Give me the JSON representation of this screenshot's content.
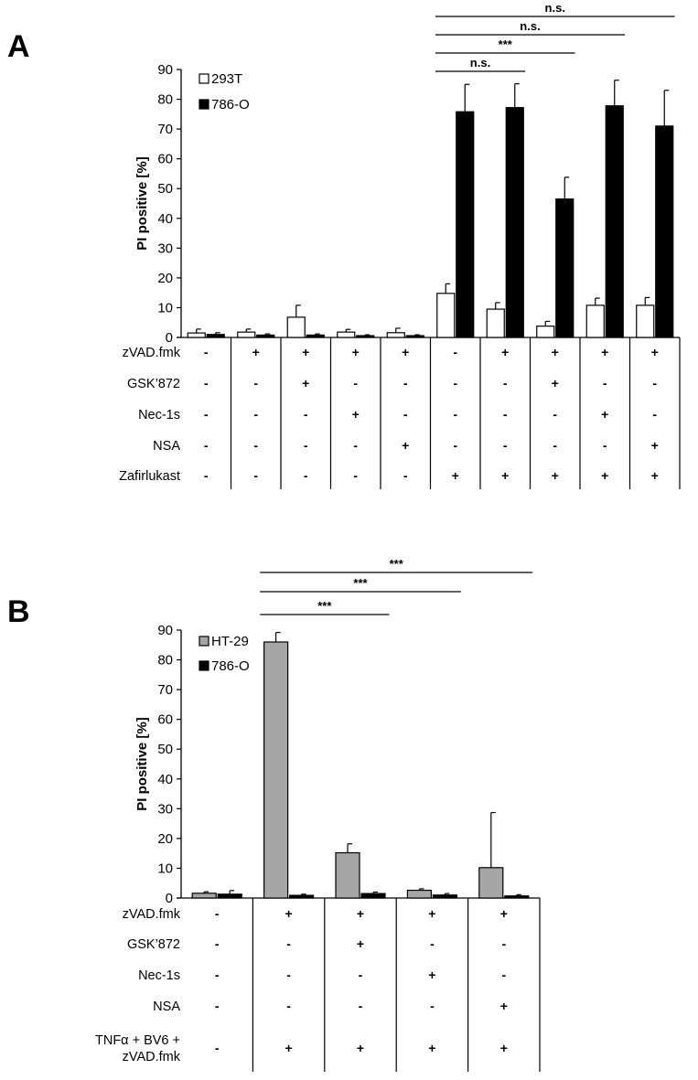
{
  "chart_data": [
    {
      "panel": "A",
      "type": "bar",
      "ylabel": "PI positive [%]",
      "ylim": [
        0,
        90
      ],
      "yticks": [
        0,
        10,
        20,
        30,
        40,
        50,
        60,
        70,
        80,
        90
      ],
      "grid": false,
      "legend_position": "top-left",
      "series": [
        {
          "name": "293T",
          "color": "#ffffff",
          "values": [
            1.5,
            1.8,
            6.8,
            1.8,
            1.6,
            14.8,
            9.5,
            3.8,
            10.8,
            10.8
          ],
          "errors": [
            1.3,
            1.0,
            4.0,
            0.9,
            1.5,
            3.2,
            2.2,
            1.6,
            2.4,
            2.6
          ]
        },
        {
          "name": "786-O",
          "color": "#000000",
          "values": [
            1.0,
            0.8,
            0.8,
            0.6,
            0.6,
            75.8,
            77.2,
            46.5,
            77.8,
            71.0
          ],
          "errors": [
            0.6,
            0.4,
            0.4,
            0.3,
            0.3,
            9.2,
            8.0,
            7.3,
            8.6,
            12.0
          ]
        }
      ],
      "treatments": [
        {
          "label": "zVAD.fmk",
          "signs": [
            "-",
            "+",
            "+",
            "+",
            "+",
            "-",
            "+",
            "+",
            "+",
            "+"
          ]
        },
        {
          "label": "GSK’872",
          "signs": [
            "-",
            "-",
            "+",
            "-",
            "-",
            "-",
            "-",
            "+",
            "-",
            "-"
          ]
        },
        {
          "label": "Nec-1s",
          "signs": [
            "-",
            "-",
            "-",
            "+",
            "-",
            "-",
            "-",
            "-",
            "+",
            "-"
          ]
        },
        {
          "label": "NSA",
          "signs": [
            "-",
            "-",
            "-",
            "-",
            "+",
            "-",
            "-",
            "-",
            "-",
            "+"
          ]
        },
        {
          "label": "Zafirlukast",
          "signs": [
            "-",
            "-",
            "-",
            "-",
            "-",
            "+",
            "+",
            "+",
            "+",
            "+"
          ]
        }
      ],
      "significance": [
        {
          "from": 5,
          "to": 6,
          "label": "n.s."
        },
        {
          "from": 5,
          "to": 7,
          "label": "***"
        },
        {
          "from": 5,
          "to": 8,
          "label": "n.s."
        },
        {
          "from": 5,
          "to": 9,
          "label": "n.s."
        }
      ]
    },
    {
      "panel": "B",
      "type": "bar",
      "ylabel": "PI positive [%]",
      "ylim": [
        0,
        90
      ],
      "yticks": [
        0,
        10,
        20,
        30,
        40,
        50,
        60,
        70,
        80,
        90
      ],
      "grid": false,
      "legend_position": "top-left",
      "series": [
        {
          "name": "HT-29",
          "color": "#a6a6a6",
          "values": [
            1.6,
            86.0,
            15.2,
            2.6,
            10.2
          ],
          "errors": [
            0.5,
            3.2,
            3.0,
            0.5,
            18.5
          ]
        },
        {
          "name": "786-O",
          "color": "#000000",
          "values": [
            1.3,
            0.9,
            1.5,
            1.0,
            0.7
          ],
          "errors": [
            1.2,
            0.4,
            0.5,
            0.5,
            0.4
          ]
        }
      ],
      "treatments": [
        {
          "label": "zVAD.fmk",
          "signs": [
            "-",
            "+",
            "+",
            "+",
            "+"
          ]
        },
        {
          "label": "GSK’872",
          "signs": [
            "-",
            "-",
            "+",
            "-",
            "-"
          ]
        },
        {
          "label": "Nec-1s",
          "signs": [
            "-",
            "-",
            "-",
            "+",
            "-"
          ]
        },
        {
          "label": "NSA",
          "signs": [
            "-",
            "-",
            "-",
            "-",
            "+"
          ]
        },
        {
          "label": "TNFα + BV6 +\nzVAD.fmk",
          "signs": [
            "-",
            "+",
            "+",
            "+",
            "+"
          ]
        }
      ],
      "significance": [
        {
          "from": 1,
          "to": 2,
          "label": "***"
        },
        {
          "from": 1,
          "to": 3,
          "label": "***"
        },
        {
          "from": 1,
          "to": 4,
          "label": "***"
        }
      ]
    }
  ]
}
